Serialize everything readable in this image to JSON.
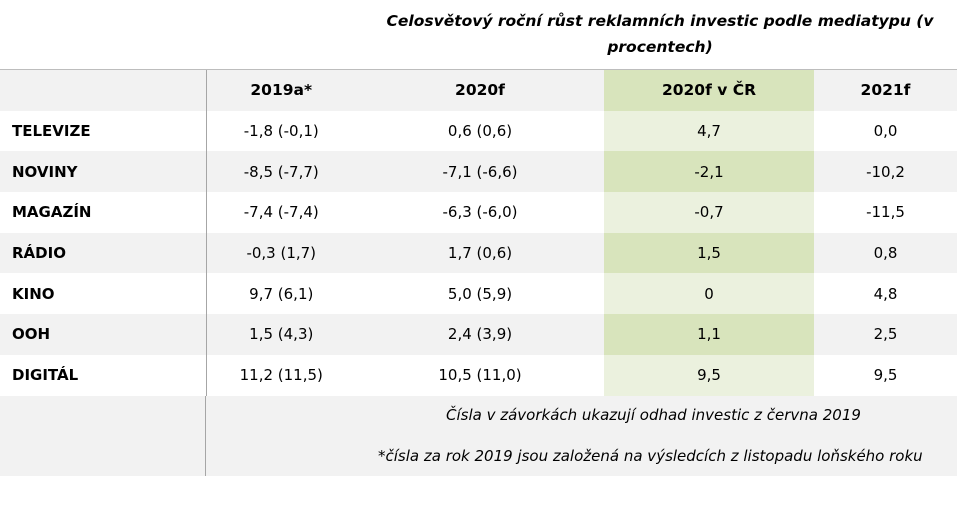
{
  "title": "Celosvětový roční růst reklamních investic podle mediatypu (v procentech)",
  "columns": [
    "",
    "2019a*",
    "2020f",
    "2020f v ČR",
    "2021f"
  ],
  "rows": [
    {
      "label": "TELEVIZE",
      "values": [
        "-1,8 (-0,1)",
        "0,6 (0,6)",
        "4,7",
        "0,0"
      ]
    },
    {
      "label": "NOVINY",
      "values": [
        "-8,5 (-7,7)",
        "-7,1 (-6,6)",
        "-2,1",
        "-10,2"
      ]
    },
    {
      "label": "MAGAZÍN",
      "values": [
        "-7,4 (-7,4)",
        "-6,3 (-6,0)",
        "-0,7",
        "-11,5"
      ]
    },
    {
      "label": "RÁDIO",
      "values": [
        "-0,3 (1,7)",
        "1,7 (0,6)",
        "1,5",
        "0,8"
      ]
    },
    {
      "label": "KINO",
      "values": [
        "9,7 (6,1)",
        "5,0 (5,9)",
        "0",
        "4,8"
      ]
    },
    {
      "label": "OOH",
      "values": [
        "1,5 (4,3)",
        "2,4 (3,9)",
        "1,1",
        "2,5"
      ]
    },
    {
      "label": "DIGITÁL",
      "values": [
        "11,2 (11,5)",
        "10,5 (11,0)",
        "9,5",
        "9,5"
      ]
    }
  ],
  "notes": [
    "Čísla v závorkách ukazují odhad investic z června 2019",
    "*čísla za rok 2019 jsou založená na výsledcích z listopadu loňského roku"
  ],
  "colors": {
    "highlight_dark": "#d8e4bc",
    "highlight_light": "#ebf1de",
    "row_gray": "#f2f2f2"
  }
}
